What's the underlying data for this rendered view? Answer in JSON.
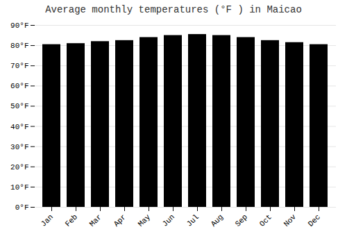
{
  "chart_data": {
    "type": "bar",
    "title": "Average monthly temperatures (°F ) in Maicao",
    "categories": [
      "Jan",
      "Feb",
      "Mar",
      "Apr",
      "May",
      "Jun",
      "Jul",
      "Aug",
      "Sep",
      "Oct",
      "Nov",
      "Dec"
    ],
    "values": [
      80.5,
      81.0,
      82.0,
      82.5,
      84.0,
      85.0,
      85.5,
      85.0,
      84.0,
      82.5,
      81.5,
      80.5
    ],
    "ylim": [
      0,
      90
    ],
    "yticks": [
      {
        "value": 0,
        "label": "0°F"
      },
      {
        "value": 10,
        "label": "10°F"
      },
      {
        "value": 20,
        "label": "20°F"
      },
      {
        "value": 30,
        "label": "30°F"
      },
      {
        "value": 40,
        "label": "40°F"
      },
      {
        "value": 50,
        "label": "50°F"
      },
      {
        "value": 60,
        "label": "60°F"
      },
      {
        "value": 70,
        "label": "70°F"
      },
      {
        "value": 80,
        "label": "80°F"
      },
      {
        "value": 90,
        "label": "90°F"
      }
    ],
    "grid": true
  }
}
